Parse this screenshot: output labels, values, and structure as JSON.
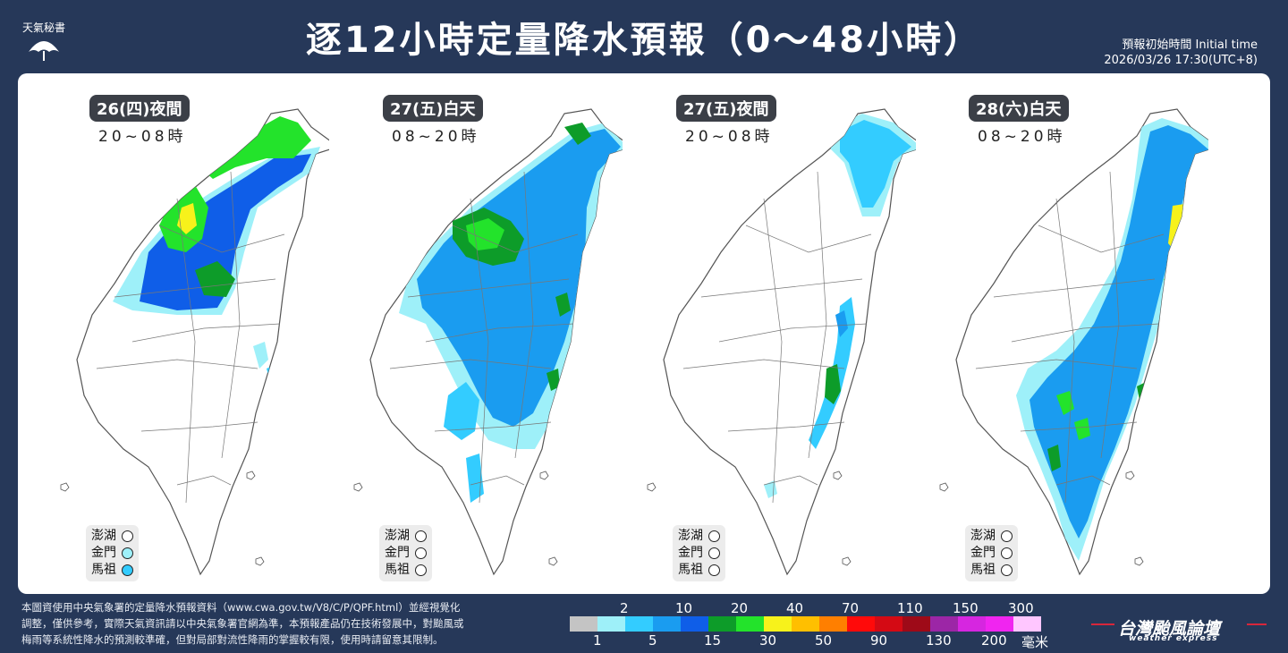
{
  "header": {
    "logo_text": "天氣秘書",
    "title": "逐12小時定量降水預報（0〜48小時）",
    "init_label": "預報初始時間 Initial time",
    "init_time": "2026/03/26  17:30(UTC+8)"
  },
  "maps": [
    {
      "period": "26(四)夜間",
      "hours": "20~08時"
    },
    {
      "period": "27(五)白天",
      "hours": "08~20時"
    },
    {
      "period": "27(五)夜間",
      "hours": "20~08時"
    },
    {
      "period": "28(六)白天",
      "hours": "08~20時"
    }
  ],
  "islands_labels": [
    "澎湖",
    "金門",
    "馬祖"
  ],
  "islands_levels": [
    [
      0,
      1,
      2
    ],
    [
      0,
      0,
      0
    ],
    [
      0,
      0,
      0
    ],
    [
      0,
      0,
      0
    ]
  ],
  "legend": {
    "top_labels": [
      "2",
      "10",
      "20",
      "40",
      "70",
      "110",
      "150",
      "300"
    ],
    "bottom_labels": [
      "1",
      "5",
      "15",
      "30",
      "50",
      "90",
      "130",
      "200"
    ],
    "unit": "毫米",
    "colors": [
      "#c4c4c4",
      "#9ef0f9",
      "#33ccff",
      "#1a9cf0",
      "#0f5ee8",
      "#0d9c29",
      "#23e32b",
      "#f7f21b",
      "#ffbf00",
      "#ff7f00",
      "#ff0a0a",
      "#d40a14",
      "#9e0a18",
      "#9c26a6",
      "#d626e0",
      "#f025f0",
      "#ffc6ff"
    ]
  },
  "footer": {
    "line1": "本圖資使用中央氣象署的定量降水預報資料（www.cwa.gov.tw/V8/C/P/QPF.html）並經視覺化",
    "line2": "調整，僅供參考，實際天氣資訊請以中央氣象署官網為準，本預報產品仍在技術發展中，對颱風或",
    "line3": "梅雨等系統性降水的預測較準確，但對局部對流性降雨的掌握較有限，使用時請留意其限制。"
  },
  "brand": {
    "name": "台灣颱風論壇",
    "sub": "weather express"
  }
}
